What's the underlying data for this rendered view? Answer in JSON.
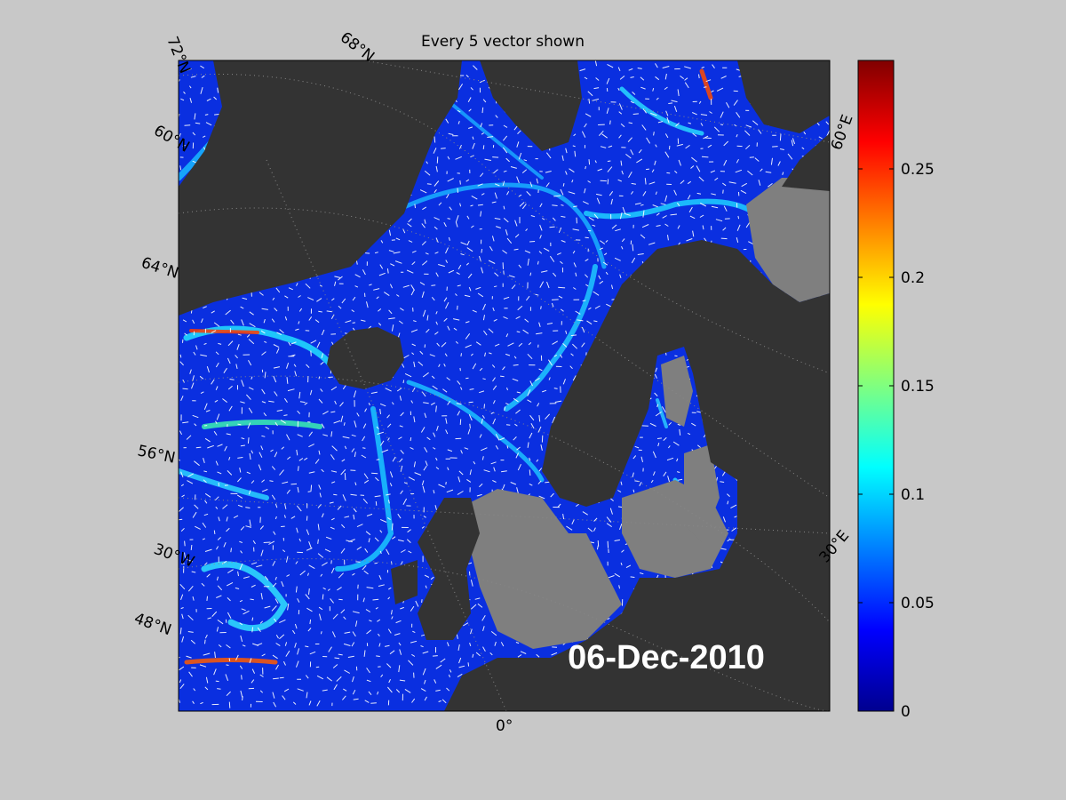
{
  "title": "Every 5 vector shown",
  "date_label": "06-Dec-2010",
  "colorbar": {
    "ticks": [
      {
        "value": 0.25,
        "label": "0.25"
      },
      {
        "value": 0.2,
        "label": "0.2"
      },
      {
        "value": 0.15,
        "label": "0.15"
      },
      {
        "value": 0.1,
        "label": "0.1"
      },
      {
        "value": 0.05,
        "label": "0.05"
      },
      {
        "value": 0,
        "label": "0"
      }
    ],
    "range": [
      0,
      0.3
    ],
    "colormap": "jet"
  },
  "graticule_labels": {
    "lat_72": "72°N",
    "lat_68": "68°N",
    "lat_64": "64°N",
    "lat_60": "60°N",
    "lat_56": "56°N",
    "lat_48": "48°N",
    "lon_30w": "30°W",
    "lon_0": "0°",
    "lon_30e": "30°E",
    "lon_60e": "60°E"
  },
  "colors": {
    "background": "#c8c8c8",
    "land": "#333333",
    "shelf": "#7f7f7f",
    "ocean_low": "#0a2fe0",
    "vectors": "#ffffff"
  }
}
